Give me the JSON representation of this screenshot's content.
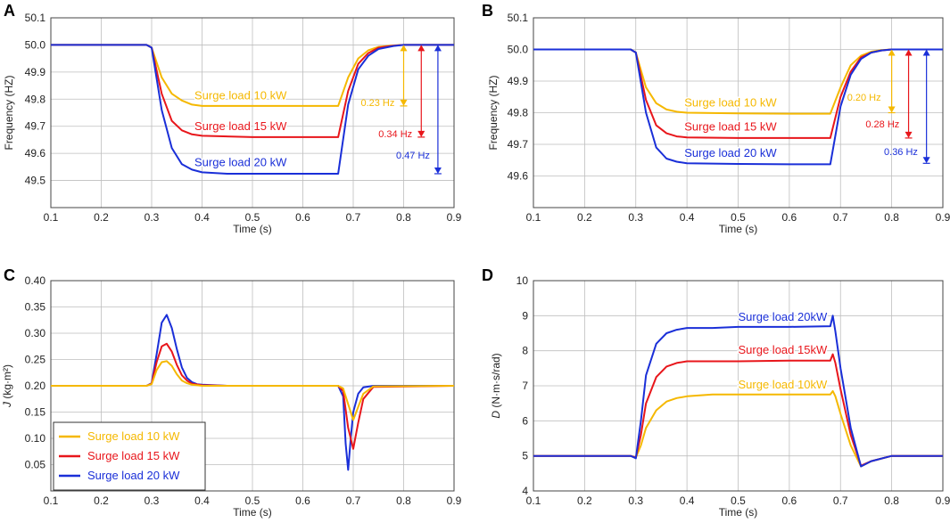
{
  "colors": {
    "c10": "#F5B800",
    "c15": "#E8161B",
    "c20": "#1A2FD8",
    "grid": "#BEBEBE",
    "axis": "#444444"
  },
  "chart_data": [
    {
      "id": "A",
      "type": "line",
      "panel_label": "A",
      "xlabel": "Time (s)",
      "ylabel": "Frequency (HZ)",
      "xlim": [
        0.1,
        0.9
      ],
      "ylim": [
        49.4,
        50.1
      ],
      "xticks": [
        "0.1",
        "0.2",
        "0.3",
        "0.4",
        "0.5",
        "0.6",
        "0.7",
        "0.8",
        "0.9"
      ],
      "yticks": [
        "49.5",
        "49.6",
        "49.7",
        "49.8",
        "49.9",
        "50.0",
        "50.1"
      ],
      "series": [
        {
          "name": "Surge load 10 kW",
          "color": "c10",
          "x": [
            0.1,
            0.29,
            0.3,
            0.32,
            0.34,
            0.36,
            0.38,
            0.4,
            0.5,
            0.6,
            0.67,
            0.69,
            0.71,
            0.73,
            0.75,
            0.78,
            0.8,
            0.9
          ],
          "y": [
            50.0,
            50.0,
            49.99,
            49.88,
            49.82,
            49.795,
            49.78,
            49.775,
            49.775,
            49.775,
            49.775,
            49.88,
            49.95,
            49.98,
            49.993,
            49.998,
            50.0,
            50.0
          ]
        },
        {
          "name": "Surge load 15 kW",
          "color": "c15",
          "x": [
            0.1,
            0.29,
            0.3,
            0.32,
            0.34,
            0.36,
            0.38,
            0.4,
            0.5,
            0.6,
            0.67,
            0.69,
            0.71,
            0.73,
            0.75,
            0.78,
            0.8,
            0.9
          ],
          "y": [
            50.0,
            50.0,
            49.99,
            49.82,
            49.72,
            49.685,
            49.67,
            49.665,
            49.66,
            49.66,
            49.66,
            49.83,
            49.93,
            49.97,
            49.99,
            49.997,
            50.0,
            50.0
          ]
        },
        {
          "name": "Surge load 20 kW",
          "color": "c20",
          "x": [
            0.1,
            0.29,
            0.3,
            0.32,
            0.34,
            0.36,
            0.38,
            0.4,
            0.45,
            0.5,
            0.6,
            0.67,
            0.69,
            0.71,
            0.73,
            0.75,
            0.78,
            0.8,
            0.9
          ],
          "y": [
            50.0,
            50.0,
            49.99,
            49.76,
            49.62,
            49.56,
            49.54,
            49.53,
            49.525,
            49.525,
            49.525,
            49.525,
            49.78,
            49.91,
            49.96,
            49.985,
            49.996,
            50.0,
            50.0
          ]
        }
      ],
      "labels": [
        {
          "text": "Surge load 10 kW",
          "x": 0.385,
          "y": 49.8,
          "color": "c10"
        },
        {
          "text": "Surge load 15 kW",
          "x": 0.385,
          "y": 49.686,
          "color": "c15"
        },
        {
          "text": "Surge load 20 kW",
          "x": 0.385,
          "y": 49.552,
          "color": "c20"
        }
      ],
      "arrows": [
        {
          "text": "0.23 Hz",
          "x": 0.8,
          "y_top": 50.0,
          "y_bot": 49.775,
          "color": "c10",
          "label_x": 0.715,
          "label_y": 49.775
        },
        {
          "text": "0.34 Hz",
          "x": 0.835,
          "y_top": 50.0,
          "y_bot": 49.66,
          "color": "c15",
          "label_x": 0.75,
          "label_y": 49.66
        },
        {
          "text": "0.47 Hz",
          "x": 0.868,
          "y_top": 50.0,
          "y_bot": 49.525,
          "color": "c20",
          "label_x": 0.785,
          "label_y": 49.58
        }
      ]
    },
    {
      "id": "B",
      "type": "line",
      "panel_label": "B",
      "xlabel": "Time (s)",
      "ylabel": "Frequency (HZ)",
      "xlim": [
        0.1,
        0.9
      ],
      "ylim": [
        49.5,
        50.1
      ],
      "xticks": [
        "0.1",
        "0.2",
        "0.3",
        "0.4",
        "0.5",
        "0.6",
        "0.7",
        "0.8",
        "0.9"
      ],
      "yticks": [
        "49.6",
        "49.7",
        "49.8",
        "49.9",
        "50.0",
        "50.1"
      ],
      "series": [
        {
          "name": "Surge load 10 kW",
          "color": "c10",
          "x": [
            0.1,
            0.29,
            0.3,
            0.32,
            0.34,
            0.36,
            0.38,
            0.4,
            0.5,
            0.6,
            0.68,
            0.7,
            0.72,
            0.74,
            0.76,
            0.78,
            0.8,
            0.9
          ],
          "y": [
            50.0,
            50.0,
            49.99,
            49.88,
            49.83,
            49.81,
            49.803,
            49.8,
            49.798,
            49.797,
            49.797,
            49.88,
            49.95,
            49.98,
            49.993,
            49.998,
            50.0,
            50.0
          ]
        },
        {
          "name": "Surge load 15 kW",
          "color": "c15",
          "x": [
            0.1,
            0.29,
            0.3,
            0.32,
            0.34,
            0.36,
            0.38,
            0.4,
            0.5,
            0.6,
            0.68,
            0.7,
            0.72,
            0.74,
            0.76,
            0.78,
            0.8,
            0.9
          ],
          "y": [
            50.0,
            50.0,
            49.99,
            49.84,
            49.76,
            49.735,
            49.725,
            49.722,
            49.72,
            49.72,
            49.72,
            49.85,
            49.93,
            49.975,
            49.99,
            49.997,
            50.0,
            50.0
          ]
        },
        {
          "name": "Surge load 20 kW",
          "color": "c20",
          "x": [
            0.1,
            0.29,
            0.3,
            0.32,
            0.34,
            0.36,
            0.38,
            0.4,
            0.5,
            0.6,
            0.68,
            0.7,
            0.72,
            0.74,
            0.76,
            0.78,
            0.8,
            0.9
          ],
          "y": [
            50.0,
            50.0,
            49.99,
            49.8,
            49.69,
            49.655,
            49.645,
            49.64,
            49.638,
            49.637,
            49.637,
            49.82,
            49.92,
            49.97,
            49.99,
            49.997,
            50.0,
            50.0
          ]
        }
      ],
      "labels": [
        {
          "text": "Surge load 10 kW",
          "x": 0.395,
          "y": 49.82,
          "color": "c10"
        },
        {
          "text": "Surge load 15 kW",
          "x": 0.395,
          "y": 49.743,
          "color": "c15"
        },
        {
          "text": "Surge load 20 kW",
          "x": 0.395,
          "y": 49.66,
          "color": "c20"
        }
      ],
      "arrows": [
        {
          "text": "0.20 Hz",
          "x": 0.8,
          "y_top": 50.0,
          "y_bot": 49.8,
          "color": "c10",
          "label_x": 0.713,
          "label_y": 49.838
        },
        {
          "text": "0.28 Hz",
          "x": 0.833,
          "y_top": 50.0,
          "y_bot": 49.72,
          "color": "c15",
          "label_x": 0.749,
          "label_y": 49.754
        },
        {
          "text": "0.36 Hz",
          "x": 0.868,
          "y_top": 50.0,
          "y_bot": 49.64,
          "color": "c20",
          "label_x": 0.785,
          "label_y": 49.666
        }
      ]
    },
    {
      "id": "C",
      "type": "line",
      "panel_label": "C",
      "xlabel": "Time (s)",
      "ylabel_italic": "J",
      "ylabel_rest": " (kg·m²)",
      "xlim": [
        0.1,
        0.9
      ],
      "ylim": [
        0.0,
        0.4
      ],
      "xticks": [
        "0.1",
        "0.2",
        "0.3",
        "0.4",
        "0.5",
        "0.6",
        "0.7",
        "0.8",
        "0.9"
      ],
      "yticks": [
        "0.05",
        "0.10",
        "0.15",
        "0.20",
        "0.25",
        "0.30",
        "0.35",
        "0.40"
      ],
      "series": [
        {
          "name": "Surge load 20 kW",
          "color": "c20",
          "x": [
            0.1,
            0.29,
            0.3,
            0.31,
            0.32,
            0.33,
            0.34,
            0.35,
            0.36,
            0.37,
            0.38,
            0.39,
            0.4,
            0.45,
            0.5,
            0.6,
            0.67,
            0.68,
            0.685,
            0.69,
            0.695,
            0.7,
            0.71,
            0.72,
            0.74,
            0.9
          ],
          "y": [
            0.2,
            0.2,
            0.205,
            0.26,
            0.32,
            0.335,
            0.31,
            0.27,
            0.235,
            0.215,
            0.207,
            0.203,
            0.202,
            0.2,
            0.2,
            0.2,
            0.2,
            0.18,
            0.09,
            0.04,
            0.1,
            0.15,
            0.185,
            0.197,
            0.2,
            0.2
          ]
        },
        {
          "name": "Surge load 15 kW",
          "color": "c15",
          "x": [
            0.1,
            0.29,
            0.3,
            0.31,
            0.32,
            0.33,
            0.34,
            0.35,
            0.36,
            0.37,
            0.38,
            0.4,
            0.45,
            0.5,
            0.6,
            0.67,
            0.68,
            0.69,
            0.7,
            0.71,
            0.72,
            0.74,
            0.9
          ],
          "y": [
            0.2,
            0.2,
            0.204,
            0.245,
            0.275,
            0.28,
            0.265,
            0.24,
            0.22,
            0.21,
            0.204,
            0.201,
            0.2,
            0.2,
            0.2,
            0.2,
            0.19,
            0.12,
            0.08,
            0.13,
            0.175,
            0.198,
            0.2
          ]
        },
        {
          "name": "Surge load 10 kW",
          "color": "c10",
          "x": [
            0.1,
            0.29,
            0.3,
            0.31,
            0.32,
            0.33,
            0.34,
            0.35,
            0.36,
            0.37,
            0.38,
            0.4,
            0.45,
            0.5,
            0.6,
            0.67,
            0.68,
            0.69,
            0.7,
            0.71,
            0.72,
            0.74,
            0.9
          ],
          "y": [
            0.2,
            0.2,
            0.203,
            0.23,
            0.245,
            0.247,
            0.238,
            0.222,
            0.21,
            0.205,
            0.202,
            0.2,
            0.2,
            0.2,
            0.2,
            0.2,
            0.195,
            0.165,
            0.135,
            0.16,
            0.185,
            0.199,
            0.2
          ]
        }
      ],
      "legend": [
        {
          "text": "Surge load 10 kW",
          "color": "c10"
        },
        {
          "text": "Surge load 15 kW",
          "color": "c15"
        },
        {
          "text": "Surge load 20 kW",
          "color": "c20"
        }
      ],
      "legend_position": "bottom-left"
    },
    {
      "id": "D",
      "type": "line",
      "panel_label": "D",
      "xlabel": "Time (s)",
      "ylabel_italic": "D",
      "ylabel_rest": " (N·m·s/rad)",
      "xlim": [
        0.1,
        0.9
      ],
      "ylim": [
        4,
        10
      ],
      "xticks": [
        "0.1",
        "0.2",
        "0.3",
        "0.4",
        "0.5",
        "0.6",
        "0.7",
        "0.8",
        "0.9"
      ],
      "yticks": [
        "4",
        "5",
        "6",
        "7",
        "8",
        "9",
        "10"
      ],
      "series": [
        {
          "name": "Surge load 10 kW",
          "color": "c10",
          "x": [
            0.1,
            0.29,
            0.3,
            0.31,
            0.32,
            0.34,
            0.36,
            0.38,
            0.4,
            0.45,
            0.5,
            0.6,
            0.68,
            0.685,
            0.69,
            0.7,
            0.72,
            0.74,
            0.76,
            0.8,
            0.9
          ],
          "y": [
            5.0,
            5.0,
            4.95,
            5.3,
            5.8,
            6.3,
            6.55,
            6.65,
            6.7,
            6.75,
            6.75,
            6.75,
            6.75,
            6.85,
            6.7,
            6.2,
            5.3,
            4.7,
            4.85,
            5.0,
            5.0
          ]
        },
        {
          "name": "Surge load 15 kW",
          "color": "c15",
          "x": [
            0.1,
            0.29,
            0.3,
            0.31,
            0.32,
            0.34,
            0.36,
            0.38,
            0.4,
            0.45,
            0.5,
            0.6,
            0.68,
            0.685,
            0.69,
            0.7,
            0.72,
            0.74,
            0.76,
            0.8,
            0.9
          ],
          "y": [
            5.0,
            5.0,
            4.95,
            5.6,
            6.5,
            7.25,
            7.55,
            7.65,
            7.7,
            7.7,
            7.7,
            7.72,
            7.72,
            7.9,
            7.65,
            6.9,
            5.6,
            4.72,
            4.85,
            5.0,
            5.0
          ]
        },
        {
          "name": "Surge load 20 kW",
          "color": "c20",
          "x": [
            0.1,
            0.29,
            0.3,
            0.31,
            0.32,
            0.34,
            0.36,
            0.38,
            0.4,
            0.45,
            0.5,
            0.6,
            0.68,
            0.685,
            0.69,
            0.7,
            0.72,
            0.74,
            0.76,
            0.8,
            0.9
          ],
          "y": [
            5.0,
            5.0,
            4.93,
            6.0,
            7.3,
            8.2,
            8.5,
            8.6,
            8.65,
            8.65,
            8.68,
            8.68,
            8.7,
            9.0,
            8.55,
            7.5,
            5.8,
            4.7,
            4.85,
            5.0,
            5.0
          ]
        }
      ],
      "labels": [
        {
          "text": "Surge load 20kW",
          "x": 0.5,
          "y": 8.85,
          "color": "c20"
        },
        {
          "text": "Surge load 15kW",
          "x": 0.5,
          "y": 7.92,
          "color": "c15"
        },
        {
          "text": "Surge load 10kW",
          "x": 0.5,
          "y": 6.92,
          "color": "c10"
        }
      ]
    }
  ]
}
